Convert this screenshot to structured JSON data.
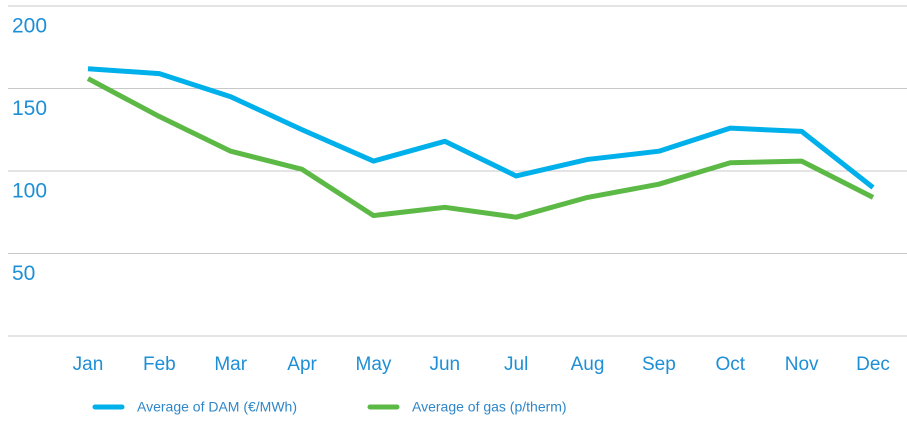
{
  "chart_data": {
    "type": "line",
    "categories": [
      "Jan",
      "Feb",
      "Mar",
      "Apr",
      "May",
      "Jun",
      "Jul",
      "Aug",
      "Sep",
      "Oct",
      "Nov",
      "Dec"
    ],
    "series": [
      {
        "name": "Average of DAM (€/MWh)",
        "color": "#00b0ea",
        "values": [
          162,
          159,
          145,
          125,
          106,
          118,
          97,
          107,
          112,
          126,
          124,
          90
        ]
      },
      {
        "name": "Average of gas (p/therm)",
        "color": "#5cb946",
        "values": [
          156,
          133,
          112,
          101,
          73,
          78,
          72,
          84,
          92,
          105,
          106,
          84
        ]
      }
    ],
    "ylim": [
      0,
      200
    ],
    "yticks": [
      50,
      100,
      150,
      200
    ],
    "grid": true
  }
}
